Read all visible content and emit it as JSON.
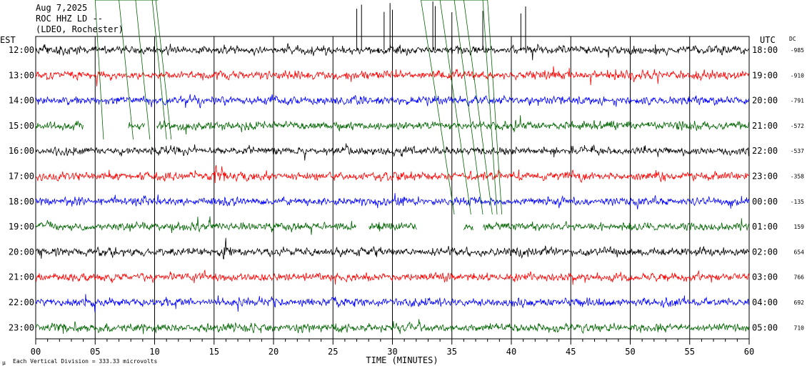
{
  "header": {
    "date": "Aug 7,2025",
    "channel": "ROC HHZ LD --",
    "network": "(LDEO, Rochester)"
  },
  "left_zone": "EST",
  "right_zone": "UTC",
  "dc_label": "DC",
  "footer": {
    "xlabel": "TIME (MINUTES)",
    "scale_note": "Each Vertical Division =  333.33 microvolts",
    "scale_glyph": "μ"
  },
  "chart_data": {
    "type": "helicorder",
    "xlabel": "TIME (MINUTES)",
    "xlim": [
      0,
      60
    ],
    "xticks": [
      "00",
      "05",
      "10",
      "15",
      "20",
      "25",
      "30",
      "35",
      "40",
      "45",
      "50",
      "55",
      "60"
    ],
    "rows": [
      {
        "est": "12:00",
        "utc": "18:00",
        "dc": "-985",
        "color": "#000000"
      },
      {
        "est": "13:00",
        "utc": "19:00",
        "dc": "-910",
        "color": "#ff0000"
      },
      {
        "est": "14:00",
        "utc": "20:00",
        "dc": "-791",
        "color": "#0000ff"
      },
      {
        "est": "15:00",
        "utc": "21:00",
        "dc": "-572",
        "color": "#006400"
      },
      {
        "est": "16:00",
        "utc": "22:00",
        "dc": "-537",
        "color": "#000000"
      },
      {
        "est": "17:00",
        "utc": "23:00",
        "dc": "-358",
        "color": "#ff0000"
      },
      {
        "est": "18:00",
        "utc": "00:00",
        "dc": "-135",
        "color": "#0000ff"
      },
      {
        "est": "19:00",
        "utc": "01:00",
        "dc": "159",
        "color": "#006400"
      },
      {
        "est": "20:00",
        "utc": "02:00",
        "dc": "654",
        "color": "#000000"
      },
      {
        "est": "21:00",
        "utc": "03:00",
        "dc": "766",
        "color": "#ff0000"
      },
      {
        "est": "22:00",
        "utc": "04:00",
        "dc": "692",
        "color": "#0000ff"
      },
      {
        "est": "23:00",
        "utc": "05:00",
        "dc": "710",
        "color": "#006400"
      }
    ],
    "gaps": [
      {
        "row": 3,
        "from_min": 4.0,
        "to_min": 7.8
      },
      {
        "row": 3,
        "from_min": 9.2,
        "to_min": 10.2
      },
      {
        "row": 7,
        "from_min": 27.0,
        "to_min": 28.0
      },
      {
        "row": 7,
        "from_min": 32.1,
        "to_min": 36.0
      },
      {
        "row": 7,
        "from_min": 36.8,
        "to_min": 37.6
      }
    ],
    "events": [
      {
        "row": 5,
        "at_min": 15.4,
        "note": "local event burst"
      },
      {
        "row": 8,
        "at_min": 16.0,
        "note": "spike"
      }
    ]
  }
}
